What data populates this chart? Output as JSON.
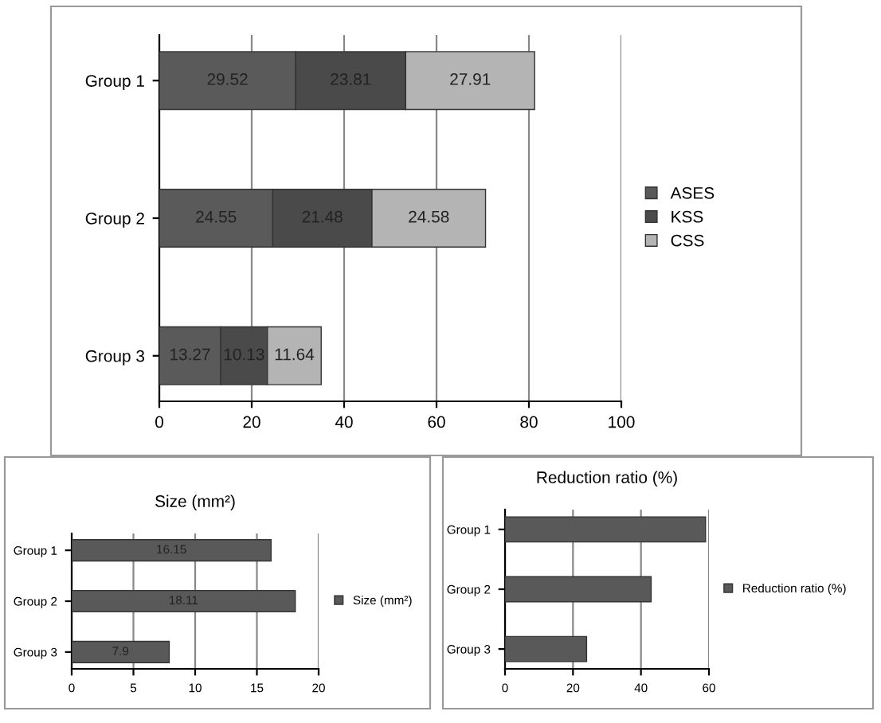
{
  "chart_data": [
    {
      "type": "bar",
      "orientation": "horizontal",
      "stacked": true,
      "categories": [
        "Group 1",
        "Group 2",
        "Group 3"
      ],
      "series": [
        {
          "name": "ASES",
          "color": "#5a5a5a",
          "values": [
            29.52,
            24.55,
            13.27
          ]
        },
        {
          "name": "KSS",
          "color": "#4a4a4a",
          "values": [
            23.81,
            21.48,
            10.13
          ]
        },
        {
          "name": "CSS",
          "color": "#b4b4b4",
          "values": [
            27.91,
            24.58,
            11.64
          ]
        }
      ],
      "xlim": [
        0,
        100
      ],
      "xticks": [
        0,
        20,
        40,
        60,
        80,
        100
      ],
      "grid": "x",
      "legend": "right",
      "data_labels": true
    },
    {
      "type": "bar",
      "orientation": "horizontal",
      "title": "Size (mm²)",
      "categories": [
        "Group 1",
        "Group 2",
        "Group 3"
      ],
      "series": [
        {
          "name": "Size (mm²)",
          "color": "#595959",
          "values": [
            16.15,
            18.11,
            7.9
          ]
        }
      ],
      "xlim": [
        0,
        20
      ],
      "xticks": [
        0,
        5,
        10,
        15,
        20
      ],
      "grid": "x",
      "legend": "right",
      "data_labels": true
    },
    {
      "type": "bar",
      "orientation": "horizontal",
      "title": "Reduction ratio (%)",
      "categories": [
        "Group 1",
        "Group 2",
        "Group 3"
      ],
      "series": [
        {
          "name": "Reduction ratio (%)",
          "color": "#595959",
          "values": [
            59,
            43,
            24
          ]
        }
      ],
      "xlim": [
        0,
        60
      ],
      "xticks": [
        0,
        20,
        40,
        60
      ],
      "grid": "x",
      "legend": "right"
    }
  ]
}
